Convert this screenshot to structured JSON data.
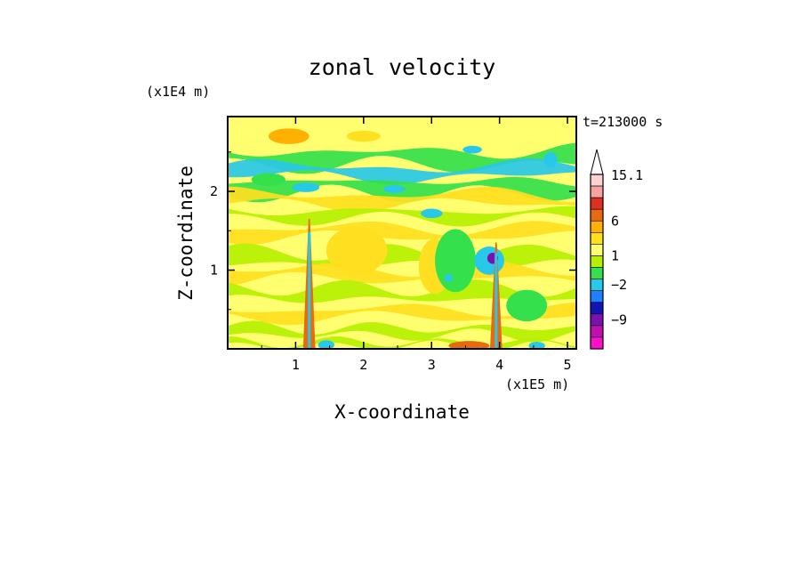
{
  "chart_data": {
    "type": "heatmap",
    "title": "zonal velocity",
    "xlabel": "X-coordinate",
    "ylabel": "Z-coordinate",
    "x_unit": "(x1E5 m)",
    "y_unit": "(x1E4 m)",
    "time_label": "t=213000 s",
    "xlim": [
      0,
      5.13
    ],
    "ylim": [
      0,
      2.95
    ],
    "x_ticks": [
      "1",
      "2",
      "3",
      "4",
      "5"
    ],
    "y_ticks": [
      "1",
      "2"
    ],
    "colorbar": {
      "shown_labels": [
        "15.1",
        "6",
        "1",
        "−2",
        "−9"
      ],
      "levels": [
        15.1,
        12,
        9,
        6,
        3,
        2,
        1,
        0,
        -1,
        -2,
        -3,
        -6,
        -9,
        -12,
        -15
      ],
      "colors": [
        "#ffd2d2",
        "#f5a3a3",
        "#e03020",
        "#e86a10",
        "#ffb000",
        "#ffe020",
        "#ffff70",
        "#b6f000",
        "#34e04c",
        "#28c8e8",
        "#2080ff",
        "#1414b4",
        "#7a10b0",
        "#c010b0",
        "#ff10c8"
      ],
      "extend": "max"
    },
    "grid": false,
    "features": [
      {
        "x": 1.2,
        "z_top": 1.65,
        "note": "vertical shear column"
      },
      {
        "x": 3.95,
        "z_top": 1.35,
        "note": "vertical shear column with strong negative core"
      }
    ]
  }
}
